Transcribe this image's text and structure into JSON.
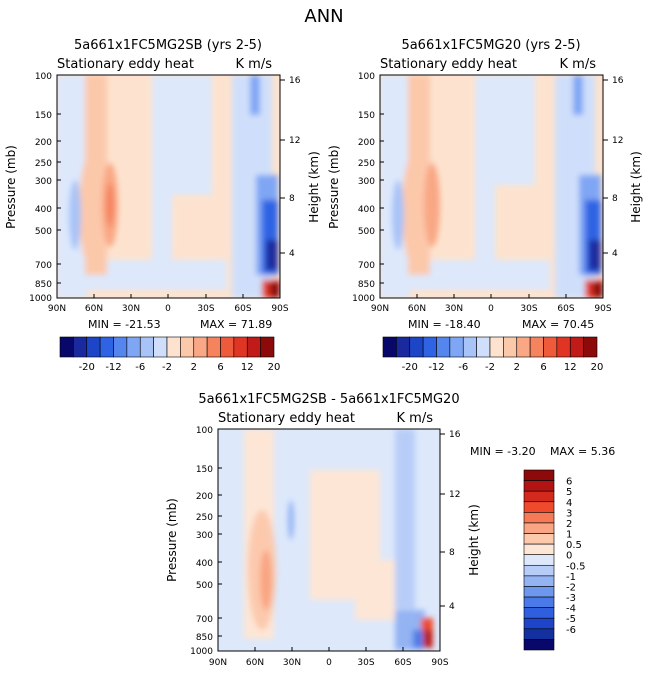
{
  "page_title": "ANN",
  "colors": {
    "neg": [
      "#08086b",
      "#1a2a9e",
      "#1c45c8",
      "#2f63e4",
      "#5586ee",
      "#7fa6f4",
      "#a7c3f8",
      "#cfdffb"
    ],
    "pos": [
      "#fde3cf",
      "#fcc8aa",
      "#f9a784",
      "#f5835e",
      "#ef5b3a",
      "#e03524",
      "#c01b18",
      "#8c0a0a"
    ],
    "diff_colorbar": [
      "#8c0a0a",
      "#b21414",
      "#d42a1e",
      "#ef4a2c",
      "#f57a55",
      "#f9a482",
      "#fcc9ad",
      "#fde6d6",
      "#dde8fb",
      "#b7cdf8",
      "#93b3f3",
      "#6e97ee",
      "#4a7ae8",
      "#2f5fdf",
      "#1e45c9",
      "#13309f",
      "#08086b"
    ]
  },
  "chart_data": [
    {
      "type": "heatmap",
      "title": "5a661x1FC5MG2SB (yrs 2-5)",
      "subtitle_left": "Stationary eddy heat",
      "subtitle_right": "K m/s",
      "xlabel": "",
      "ylabel": "Pressure (mb)",
      "ylabel_right": "Height (km)",
      "x_ticks": [
        "90N",
        "60N",
        "30N",
        "0",
        "30S",
        "60S",
        "90S"
      ],
      "y_ticks": [
        "100",
        "150",
        "200",
        "250",
        "300",
        "400",
        "500",
        "700",
        "850",
        "1000"
      ],
      "y_ticks_right": [
        "16",
        "12",
        "8",
        "4"
      ],
      "min_label": "MIN = -21.53",
      "max_label": "MAX =  71.89",
      "min": -21.53,
      "max": 71.89
    },
    {
      "type": "heatmap",
      "title": "5a661x1FC5MG20 (yrs 2-5)",
      "subtitle_left": "Stationary eddy heat",
      "subtitle_right": "K m/s",
      "xlabel": "",
      "ylabel": "Pressure (mb)",
      "ylabel_right": "Height (km)",
      "x_ticks": [
        "90N",
        "60N",
        "30N",
        "0",
        "30S",
        "60S",
        "90S"
      ],
      "y_ticks": [
        "100",
        "150",
        "200",
        "250",
        "300",
        "400",
        "500",
        "700",
        "850",
        "1000"
      ],
      "y_ticks_right": [
        "16",
        "12",
        "8",
        "4"
      ],
      "min_label": "MIN = -18.40",
      "max_label": "MAX =  70.45",
      "min": -18.4,
      "max": 70.45
    },
    {
      "type": "heatmap",
      "title": "5a661x1FC5MG2SB - 5a661x1FC5MG20",
      "subtitle_left": "Stationary eddy heat",
      "subtitle_right": "K m/s",
      "xlabel": "",
      "ylabel": "Pressure (mb)",
      "ylabel_right": "Height (km)",
      "x_ticks": [
        "90N",
        "60N",
        "30N",
        "0",
        "30S",
        "60S",
        "90S"
      ],
      "y_ticks": [
        "100",
        "150",
        "200",
        "250",
        "300",
        "400",
        "500",
        "700",
        "850",
        "1000"
      ],
      "y_ticks_right": [
        "16",
        "12",
        "8",
        "4"
      ],
      "min_label": "MIN =  -3.20",
      "max_label": "MAX =    5.36",
      "min": -3.2,
      "max": 5.36
    }
  ],
  "colorbar_top": {
    "labels": [
      "-20",
      "-12",
      "-6",
      "-2",
      "2",
      "6",
      "12",
      "20"
    ]
  },
  "colorbar_diff": {
    "labels": [
      "6",
      "5",
      "4",
      "3",
      "2",
      "1",
      "0.5",
      "0",
      "-0.5",
      "-1",
      "-2",
      "-3",
      "-4",
      "-5",
      "-6"
    ]
  }
}
